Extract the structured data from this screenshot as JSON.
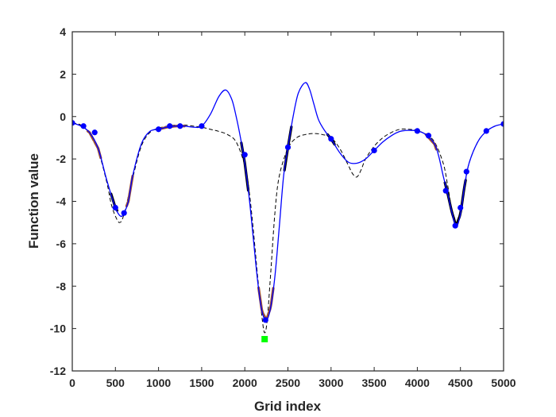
{
  "chart_data": {
    "type": "line",
    "title": "",
    "xlabel": "Grid index",
    "ylabel": "Function value",
    "xlim": [
      0,
      5000
    ],
    "ylim": [
      -12,
      4
    ],
    "xticks": [
      0,
      500,
      1000,
      1500,
      2000,
      2500,
      3000,
      3500,
      4000,
      4500,
      5000
    ],
    "yticks": [
      -12,
      -10,
      -8,
      -6,
      -4,
      -2,
      0,
      2,
      4
    ],
    "grid": false,
    "legend": "none",
    "colors": {
      "model": "#0000ff",
      "truth": "#000000",
      "points": "#0000ff",
      "highlight_brown": "#a0522d",
      "highlight_black": "#000000",
      "minimum_marker": "#00ff00"
    },
    "series": [
      {
        "style": "solid-blue",
        "x": [
          0,
          100,
          200,
          300,
          400,
          500,
          560,
          600,
          650,
          700,
          800,
          900,
          1000,
          1100,
          1200,
          1300,
          1400,
          1500,
          1600,
          1700,
          1780,
          1850,
          1900,
          1950,
          2000,
          2050,
          2100,
          2150,
          2200,
          2250,
          2300,
          2350,
          2400,
          2450,
          2500,
          2560,
          2620,
          2700,
          2750,
          2800,
          2850,
          2900,
          2950,
          3000,
          3100,
          3200,
          3300,
          3400,
          3500,
          3600,
          3700,
          3800,
          3900,
          4000,
          4100,
          4200,
          4250,
          4300,
          4350,
          4400,
          4450,
          4500,
          4550,
          4600,
          4700,
          4800,
          4900,
          5000
        ],
        "y": [
          -0.3,
          -0.45,
          -0.75,
          -1.5,
          -3.0,
          -4.3,
          -4.7,
          -4.55,
          -4.0,
          -2.8,
          -1.3,
          -0.7,
          -0.6,
          -0.5,
          -0.45,
          -0.45,
          -0.5,
          -0.45,
          0.1,
          0.95,
          1.25,
          0.8,
          0.0,
          -1.0,
          -2.2,
          -3.8,
          -5.8,
          -7.8,
          -9.2,
          -9.6,
          -9.0,
          -7.5,
          -5.2,
          -2.8,
          -1.45,
          0.0,
          1.1,
          1.6,
          1.3,
          0.6,
          -0.1,
          -0.5,
          -0.8,
          -1.05,
          -1.7,
          -2.15,
          -2.2,
          -2.0,
          -1.6,
          -1.2,
          -0.9,
          -0.7,
          -0.65,
          -0.68,
          -0.85,
          -1.3,
          -1.9,
          -2.8,
          -3.6,
          -4.5,
          -5.15,
          -4.6,
          -3.2,
          -2.2,
          -1.2,
          -0.7,
          -0.45,
          -0.35
        ]
      },
      {
        "style": "dashed-black",
        "x": [
          0,
          100,
          200,
          300,
          400,
          450,
          500,
          550,
          600,
          700,
          800,
          900,
          1000,
          1100,
          1200,
          1300,
          1400,
          1500,
          1600,
          1700,
          1800,
          1900,
          2000,
          2050,
          2100,
          2150,
          2200,
          2230,
          2260,
          2300,
          2350,
          2400,
          2500,
          2600,
          2700,
          2800,
          2900,
          3000,
          3100,
          3200,
          3250,
          3300,
          3350,
          3400,
          3500,
          3600,
          3700,
          3800,
          3900,
          4000,
          4100,
          4200,
          4300,
          4350,
          4400,
          4450,
          4500,
          4550,
          4600,
          4700,
          4800,
          4900,
          5000
        ],
        "y": [
          -0.3,
          -0.4,
          -0.8,
          -1.6,
          -3.1,
          -4.1,
          -4.7,
          -5.0,
          -4.6,
          -2.9,
          -1.4,
          -0.75,
          -0.55,
          -0.45,
          -0.4,
          -0.4,
          -0.45,
          -0.5,
          -0.6,
          -0.7,
          -0.85,
          -1.2,
          -2.3,
          -3.5,
          -5.4,
          -7.6,
          -9.5,
          -10.2,
          -9.6,
          -7.4,
          -4.5,
          -2.8,
          -1.5,
          -1.0,
          -0.85,
          -0.8,
          -0.85,
          -1.0,
          -1.5,
          -2.3,
          -2.7,
          -2.85,
          -2.5,
          -2.0,
          -1.4,
          -1.0,
          -0.75,
          -0.6,
          -0.6,
          -0.65,
          -0.85,
          -1.2,
          -2.2,
          -3.2,
          -4.4,
          -5.2,
          -4.6,
          -3.3,
          -2.2,
          -1.2,
          -0.7,
          -0.45,
          -0.35
        ]
      }
    ],
    "points": {
      "x": [
        0,
        130,
        260,
        500,
        600,
        1000,
        1130,
        1250,
        1500,
        2000,
        2240,
        2500,
        3000,
        3500,
        4000,
        4130,
        4330,
        4440,
        4500,
        4570,
        4800,
        5000
      ],
      "y": [
        -0.3,
        -0.45,
        -0.75,
        -4.3,
        -4.55,
        -0.6,
        -0.45,
        -0.45,
        -0.45,
        -1.8,
        -9.6,
        -1.45,
        -1.05,
        -1.6,
        -0.68,
        -0.9,
        -3.5,
        -5.15,
        -4.3,
        -2.6,
        -0.68,
        -0.35
      ]
    },
    "highlight_segments": [
      {
        "color": "brown",
        "x_range": [
          180,
          250
        ]
      },
      {
        "color": "brown",
        "x_range": [
          260,
          330
        ]
      },
      {
        "color": "black",
        "x_range": [
          450,
          520
        ]
      },
      {
        "color": "brown",
        "x_range": [
          630,
          700
        ]
      },
      {
        "color": "brown",
        "x_range": [
          1040,
          1300
        ]
      },
      {
        "color": "black",
        "x_range": [
          1960,
          2040
        ]
      },
      {
        "color": "brown",
        "x_range": [
          2160,
          2330
        ]
      },
      {
        "color": "black",
        "x_range": [
          2460,
          2540
        ]
      },
      {
        "color": "black",
        "x_range": [
          2960,
          3040
        ]
      },
      {
        "color": "brown",
        "x_range": [
          4100,
          4220
        ]
      },
      {
        "color": "black",
        "x_range": [
          4320,
          4560
        ]
      }
    ],
    "minimum_marker": {
      "x": 2230,
      "y": -10.5
    }
  }
}
